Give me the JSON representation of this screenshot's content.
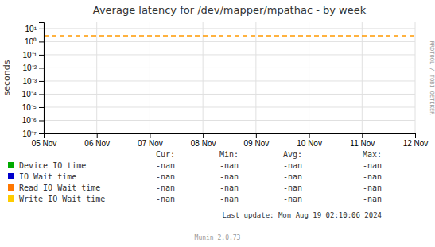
{
  "chart_data": {
    "type": "line",
    "title": "Average latency for /dev/mapper/mpathac - by week",
    "ylabel": "seconds",
    "log": "y",
    "grid": true,
    "legend": "bottom",
    "xlim": [
      0,
      7
    ],
    "xticks": [
      {
        "value": 0,
        "label": "05 Nov"
      },
      {
        "value": 1,
        "label": "06 Nov"
      },
      {
        "value": 2,
        "label": "07 Nov"
      },
      {
        "value": 3,
        "label": "08 Nov"
      },
      {
        "value": 4,
        "label": "09 Nov"
      },
      {
        "value": 5,
        "label": "10 Nov"
      },
      {
        "value": 6,
        "label": "11 Nov"
      },
      {
        "value": 7,
        "label": "12 Nov"
      }
    ],
    "ylim": [
      1e-07,
      30
    ],
    "yticks": [
      {
        "value": 1e-07,
        "label": "10⁻⁷"
      },
      {
        "value": 1e-06,
        "label": "10⁻⁶"
      },
      {
        "value": 1e-05,
        "label": "10⁻⁵"
      },
      {
        "value": 0.0001,
        "label": "10⁻⁴"
      },
      {
        "value": 0.001,
        "label": "10⁻³"
      },
      {
        "value": 0.01,
        "label": "10⁻²"
      },
      {
        "value": 0.1,
        "label": "10⁻¹"
      },
      {
        "value": 1,
        "label": "10⁰"
      },
      {
        "value": 10,
        "label": "10¹"
      }
    ],
    "hlines": [
      {
        "y": 2.8,
        "color": "#ff9900",
        "line_style": "dashed"
      }
    ],
    "legend_columns": [
      "Cur:",
      "Min:",
      "Avg:",
      "Max:"
    ],
    "series": [
      {
        "name": "Device IO time",
        "color": "#00aa00",
        "stats": [
          "-nan",
          "-nan",
          "-nan",
          "-nan"
        ]
      },
      {
        "name": "IO Wait time",
        "color": "#0000cc",
        "stats": [
          "-nan",
          "-nan",
          "-nan",
          "-nan"
        ]
      },
      {
        "name": "Read IO Wait time",
        "color": "#ff7700",
        "stats": [
          "-nan",
          "-nan",
          "-nan",
          "-nan"
        ]
      },
      {
        "name": "Write IO Wait time",
        "color": "#ffcc00",
        "stats": [
          "-nan",
          "-nan",
          "-nan",
          "-nan"
        ]
      }
    ],
    "footer": "Last update: Mon Aug 19 02:10:06 2024",
    "watermark": "Munin 2.0.73",
    "side_label": "RRDTOOL / TOBI OETIKER"
  }
}
